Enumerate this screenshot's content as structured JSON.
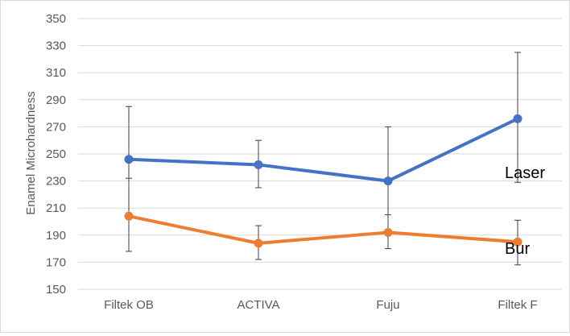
{
  "chart_data": {
    "type": "line",
    "categories": [
      "Filtek OB",
      "ACTIVA",
      "Fuju",
      "Filtek F"
    ],
    "series": [
      {
        "name": "Laser",
        "values": [
          246,
          242,
          230,
          276
        ],
        "error_upper": [
          285,
          260,
          270,
          325
        ],
        "error_lower": [
          204,
          225,
          190,
          229
        ],
        "color": "#4472c4"
      },
      {
        "name": "Bur",
        "values": [
          204,
          184,
          192,
          185
        ],
        "error_upper": [
          232,
          197,
          205,
          201
        ],
        "error_lower": [
          178,
          172,
          180,
          168
        ],
        "color": "#ed7d31"
      }
    ],
    "ylabel": "Enamel Microhardness",
    "xlabel": "",
    "ylim": [
      150,
      350
    ],
    "yticks": [
      150,
      170,
      190,
      210,
      230,
      250,
      270,
      290,
      310,
      330,
      350
    ],
    "grid": true,
    "gridline_color": "#d9d9d9",
    "legend": "series labels at right end of lines"
  }
}
